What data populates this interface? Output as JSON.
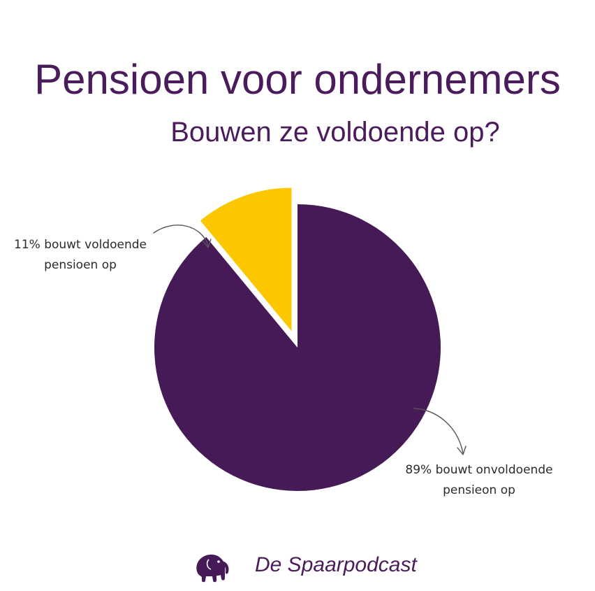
{
  "header": {
    "title": "Pensioen voor ondernemers",
    "subtitle": "Bouwen ze voldoende op?"
  },
  "labels": {
    "small_line1": "11% bouwt voldoende",
    "small_line2": "pensioen op",
    "large_line1": "89% bouwt onvoldoende",
    "large_line2": "pensieon op"
  },
  "brand": {
    "name": "De Spaarpodcast",
    "icon": "elephant-icon"
  },
  "colors": {
    "title": "#4a1c5c",
    "purple": "#461a56",
    "yellow": "#fcc600",
    "label": "#2b2b2b"
  },
  "chart_data": {
    "type": "pie",
    "categories": [
      "bouwt voldoende pensioen op",
      "bouwt onvoldoende pensieon op"
    ],
    "values": [
      11,
      89
    ],
    "colors": [
      "#fcc600",
      "#461a56"
    ],
    "exploded": [
      true,
      false
    ],
    "title": "Pensioen voor ondernemers",
    "subtitle": "Bouwen ze voldoende op?"
  }
}
